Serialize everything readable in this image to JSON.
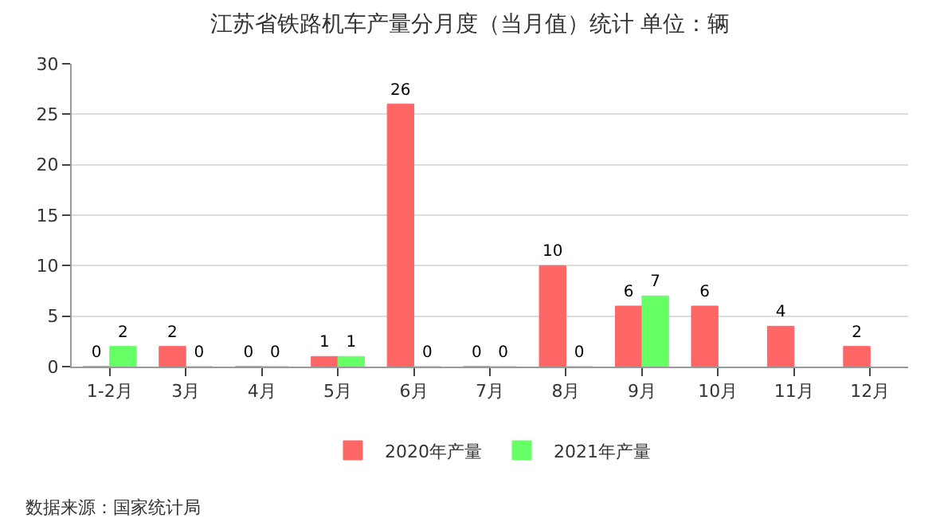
{
  "chart_data": {
    "type": "bar",
    "title": "江苏省铁路机车产量分月度（当月值）统计 单位：辆",
    "categories": [
      "1-2月",
      "3月",
      "4月",
      "5月",
      "6月",
      "7月",
      "8月",
      "9月",
      "10月",
      "11月",
      "12月"
    ],
    "series": [
      {
        "name": "2020年产量",
        "color": "#ff6666",
        "values": [
          0,
          2,
          0,
          1,
          26,
          0,
          10,
          6,
          6,
          4,
          2
        ]
      },
      {
        "name": "2021年产量",
        "color": "#66ff66",
        "values": [
          2,
          0,
          0,
          1,
          0,
          0,
          0,
          7,
          null,
          null,
          null
        ]
      }
    ],
    "ylim": [
      0,
      30
    ],
    "yticks": [
      0,
      5,
      10,
      15,
      20,
      25,
      30
    ],
    "grid": "y",
    "legend": "bottom",
    "data_labels": true,
    "annotations": [
      "数据来源：国家统计局"
    ]
  }
}
